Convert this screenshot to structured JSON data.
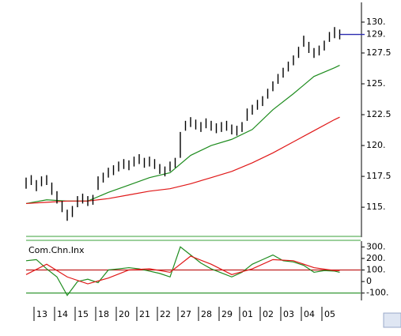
{
  "chart_data": [
    {
      "type": "ohlc",
      "x": [
        0,
        1,
        2,
        3,
        4,
        5,
        6,
        7,
        8,
        9,
        10,
        11,
        12,
        13,
        14,
        15,
        16,
        17,
        18,
        19,
        20,
        21,
        22,
        23,
        24,
        25,
        26,
        27,
        28,
        29,
        30,
        31,
        32,
        33,
        34,
        35,
        36,
        37,
        38,
        39,
        40,
        41,
        42,
        43,
        44,
        45,
        46,
        47,
        48,
        49,
        50,
        51,
        52,
        53,
        54,
        55,
        56,
        57,
        58,
        59,
        60,
        61
      ],
      "low": [
        116.5,
        116.8,
        116.3,
        116.7,
        116.8,
        116.0,
        115.3,
        114.6,
        113.9,
        114.2,
        115.0,
        115.3,
        115.1,
        115.2,
        116.4,
        117.0,
        117.4,
        117.6,
        117.9,
        118.1,
        118.0,
        118.3,
        118.5,
        118.2,
        118.3,
        118.1,
        117.7,
        117.5,
        117.9,
        118.2,
        119.0,
        121.2,
        121.5,
        121.3,
        121.1,
        121.4,
        121.2,
        121.0,
        121.1,
        121.2,
        120.9,
        120.8,
        121.1,
        122.0,
        122.5,
        122.9,
        123.2,
        123.8,
        124.4,
        125.0,
        125.5,
        126.0,
        126.5,
        127.1,
        128.0,
        127.5,
        127.1,
        127.3,
        127.7,
        128.4,
        128.7,
        128.6
      ],
      "high": [
        117.4,
        117.6,
        117.2,
        117.5,
        117.6,
        117.0,
        116.3,
        115.5,
        114.8,
        115.1,
        115.9,
        116.1,
        115.9,
        116.0,
        117.5,
        117.8,
        118.2,
        118.4,
        118.7,
        118.9,
        118.8,
        119.1,
        119.3,
        119.0,
        119.1,
        118.9,
        118.5,
        118.3,
        118.7,
        119.0,
        121.1,
        122.0,
        122.3,
        122.1,
        121.9,
        122.2,
        122.0,
        121.8,
        121.9,
        122.0,
        121.7,
        121.6,
        121.9,
        123.0,
        123.3,
        123.7,
        124.0,
        124.6,
        125.2,
        125.8,
        126.3,
        126.8,
        127.3,
        128.0,
        128.9,
        128.4,
        127.9,
        128.1,
        128.5,
        129.2,
        129.6,
        129.4
      ],
      "color": "#000000",
      "series": [
        {
          "color": "#1e8c1e",
          "x": [
            0,
            4,
            8,
            12,
            16,
            20,
            24,
            28,
            32,
            36,
            40,
            44,
            48,
            52,
            56,
            60,
            61
          ],
          "values": [
            115.3,
            115.6,
            115.5,
            115.5,
            116.2,
            116.8,
            117.4,
            117.8,
            119.2,
            120.0,
            120.5,
            121.3,
            122.9,
            124.2,
            125.6,
            126.3,
            126.5
          ]
        },
        {
          "color": "#e01818",
          "x": [
            0,
            4,
            8,
            12,
            16,
            20,
            24,
            28,
            32,
            36,
            40,
            44,
            48,
            52,
            56,
            60,
            61
          ],
          "values": [
            115.3,
            115.4,
            115.5,
            115.5,
            115.7,
            116.0,
            116.3,
            116.5,
            116.9,
            117.4,
            117.9,
            118.6,
            119.4,
            120.3,
            121.2,
            122.1,
            122.3
          ]
        }
      ],
      "xlim": [
        0,
        65
      ],
      "ylim": [
        112.7,
        131.6
      ],
      "yticks": [
        {
          "value": 115,
          "label": "115."
        },
        117.5,
        {
          "value": 120,
          "label": "120."
        },
        122.5,
        {
          "value": 125,
          "label": "125."
        },
        127.5,
        {
          "value": 130,
          "label": "130."
        }
      ],
      "price_marker": {
        "value": 129,
        "label": "129.",
        "color": "#2b2bb0"
      }
    },
    {
      "type": "line",
      "title": "Com.Chn.Inx",
      "series": [
        {
          "color": "#1e8c1e",
          "x": [
            0,
            2,
            4,
            6,
            8,
            10,
            12,
            14,
            16,
            18,
            20,
            22,
            24,
            26,
            28,
            30,
            32,
            34,
            36,
            38,
            40,
            42,
            44,
            46,
            48,
            50,
            52,
            54,
            56,
            58,
            60,
            61
          ],
          "values": [
            180,
            190,
            110,
            40,
            -120,
            0,
            20,
            -10,
            100,
            110,
            120,
            110,
            90,
            70,
            40,
            300,
            230,
            160,
            110,
            75,
            40,
            80,
            150,
            190,
            230,
            180,
            170,
            140,
            80,
            95,
            90,
            80
          ]
        },
        {
          "color": "#e01818",
          "x": [
            0,
            4,
            8,
            12,
            16,
            20,
            24,
            28,
            32,
            36,
            40,
            44,
            48,
            52,
            56,
            60,
            61
          ],
          "values": [
            60,
            150,
            40,
            -20,
            30,
            100,
            110,
            80,
            220,
            150,
            60,
            110,
            190,
            180,
            120,
            95,
            95
          ]
        }
      ],
      "xlim": [
        0,
        65
      ],
      "xticks": [
        {
          "value": 2,
          "label": "13"
        },
        {
          "value": 6,
          "label": "14"
        },
        {
          "value": 10,
          "label": "15"
        },
        {
          "value": 14,
          "label": "18"
        },
        {
          "value": 18,
          "label": "20"
        },
        {
          "value": 22,
          "label": "21"
        },
        {
          "value": 26,
          "label": "22"
        },
        {
          "value": 30,
          "label": "27"
        },
        {
          "value": 34,
          "label": "28"
        },
        {
          "value": 38,
          "label": "29"
        },
        {
          "value": 42,
          "label": "01"
        },
        {
          "value": 46,
          "label": "02"
        },
        {
          "value": 50,
          "label": "03"
        },
        {
          "value": 54,
          "label": "04"
        },
        {
          "value": 58,
          "label": "05"
        }
      ],
      "ylim": [
        -150,
        350
      ],
      "yticks": [
        {
          "value": 300,
          "label": "300."
        },
        {
          "value": 200,
          "label": "200."
        },
        {
          "value": 100,
          "label": "100."
        },
        0,
        {
          "value": -100,
          "label": "-100."
        }
      ],
      "reference_lines": [
        {
          "value": 100,
          "color": "#c02020"
        },
        {
          "value": -100,
          "color": "#1e8c1e"
        }
      ]
    }
  ]
}
